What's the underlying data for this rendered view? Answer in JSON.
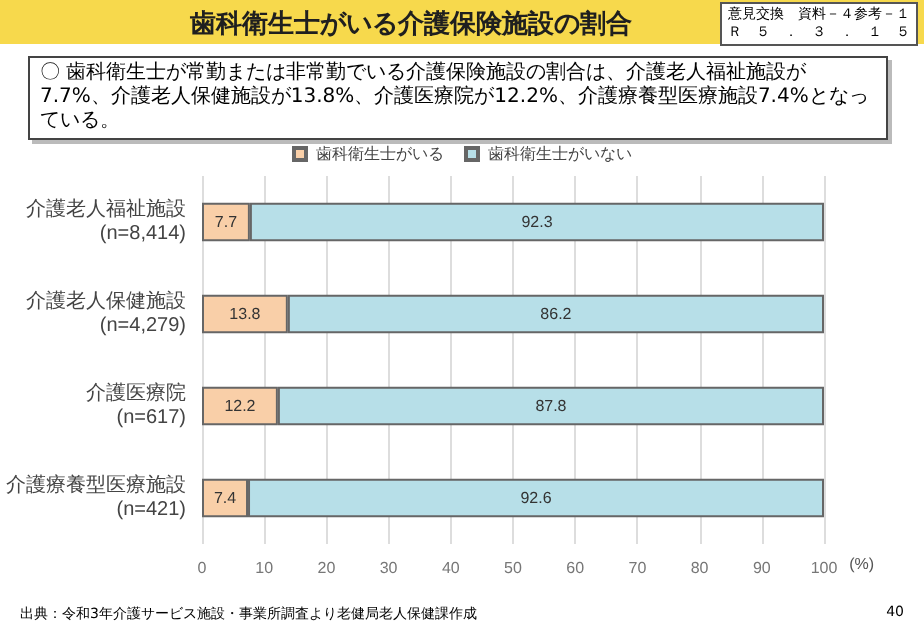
{
  "chart_data": {
    "type": "bar",
    "title": "歯科衛生士がいる介護保険施設の割合",
    "subtitle": "〇 歯科衛生士が常勤または非常勤でいる介護保険施設の割合は、介護老人福祉施設が7.7%、介護老人保健施設が13.8%、介護医療院が12.2%、介護療養型医療施設7.4%となっている。",
    "annotations": [
      "意見交換　資料－４参考－１",
      "Ｒ　５　．　３　．　１　５",
      "出典：令和3年介護サービス施設・事業所調査より老健局老人保健課作成",
      "40"
    ],
    "orientation": "horizontal",
    "stacked": true,
    "xlabel": "(%)",
    "categories": [
      "介護老人福祉施設\n(n=8,414)",
      "介護老人保健施設\n(n=4,279)",
      "介護医療院\n(n=617)",
      "介護療養型医療施設\n(n=421)"
    ],
    "series": [
      {
        "name": "歯科衛生士がいる",
        "color": "#f9cfa8",
        "values": [
          7.7,
          13.8,
          12.2,
          7.4
        ]
      },
      {
        "name": "歯科衛生士がいない",
        "color": "#b7dfe8",
        "values": [
          92.3,
          86.2,
          87.8,
          92.6
        ]
      }
    ],
    "xlim": [
      0,
      100
    ],
    "xticks": [
      0,
      10,
      20,
      30,
      40,
      50,
      60,
      70,
      80,
      90,
      100
    ],
    "grid": "x",
    "legend": "top",
    "data_labels": true
  }
}
